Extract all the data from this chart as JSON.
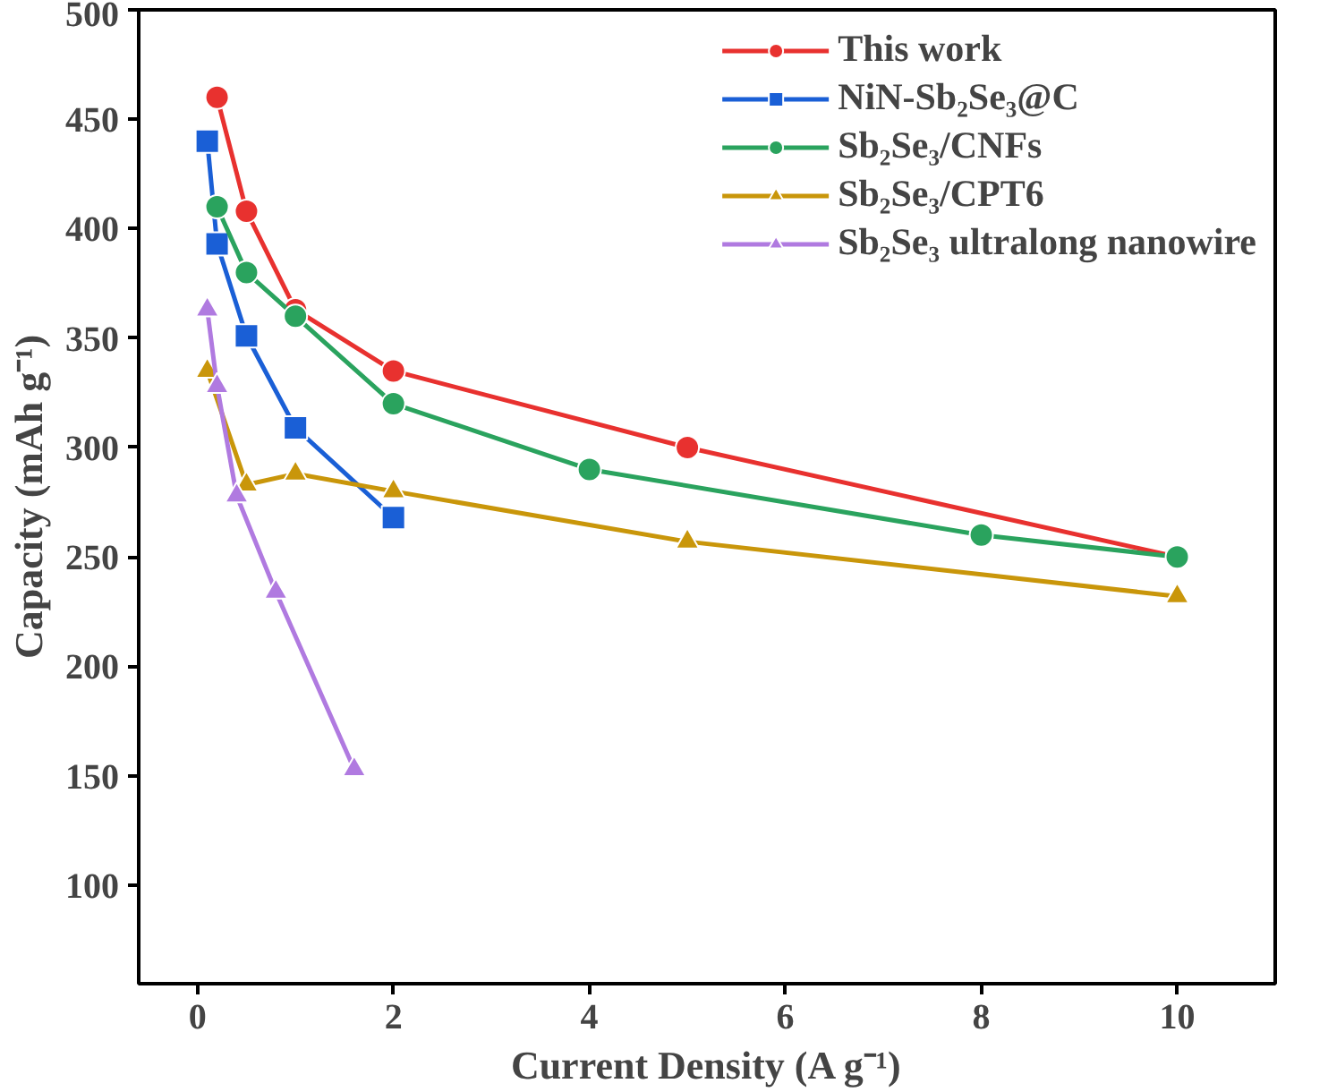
{
  "chart_data": {
    "type": "line",
    "xlabel": "Current Density (A g⁻¹)",
    "ylabel": "Capacity (mAh g⁻¹)",
    "xlim": [
      -0.6,
      11
    ],
    "ylim": [
      55,
      500
    ],
    "xticks": [
      0,
      2,
      4,
      6,
      8,
      10
    ],
    "yticks": [
      100,
      150,
      200,
      250,
      300,
      350,
      400,
      450,
      500
    ],
    "grid": false,
    "legend": "top right",
    "series": [
      {
        "name": "This work",
        "color": "#e8312f",
        "marker": "circle",
        "x": [
          0.2,
          0.5,
          1,
          2,
          5,
          10
        ],
        "values": [
          460,
          408,
          363,
          335,
          300,
          250
        ]
      },
      {
        "name": "NiN-Sb₂Se₃@C",
        "color": "#1a5fd6",
        "marker": "square",
        "x": [
          0.1,
          0.2,
          0.5,
          1,
          2
        ],
        "values": [
          440,
          393,
          351,
          309,
          268
        ]
      },
      {
        "name": "Sb₂Se₃/CNFs",
        "color": "#2aa35e",
        "marker": "circle",
        "x": [
          0.2,
          0.5,
          1,
          2,
          4,
          8,
          10
        ],
        "values": [
          410,
          380,
          360,
          320,
          290,
          260,
          250
        ]
      },
      {
        "name": "Sb₂Se₃/CPT6",
        "color": "#c9960a",
        "marker": "triangle",
        "x": [
          0.1,
          0.5,
          1,
          2,
          5,
          10
        ],
        "values": [
          335,
          283,
          288,
          280,
          257,
          232
        ]
      },
      {
        "name": "Sb₂Se₃ ultralong nanowire",
        "color": "#b07ae0",
        "marker": "triangle",
        "x": [
          0.1,
          0.2,
          0.4,
          0.8,
          1.6
        ],
        "values": [
          363,
          328,
          278,
          234,
          153
        ]
      }
    ]
  }
}
